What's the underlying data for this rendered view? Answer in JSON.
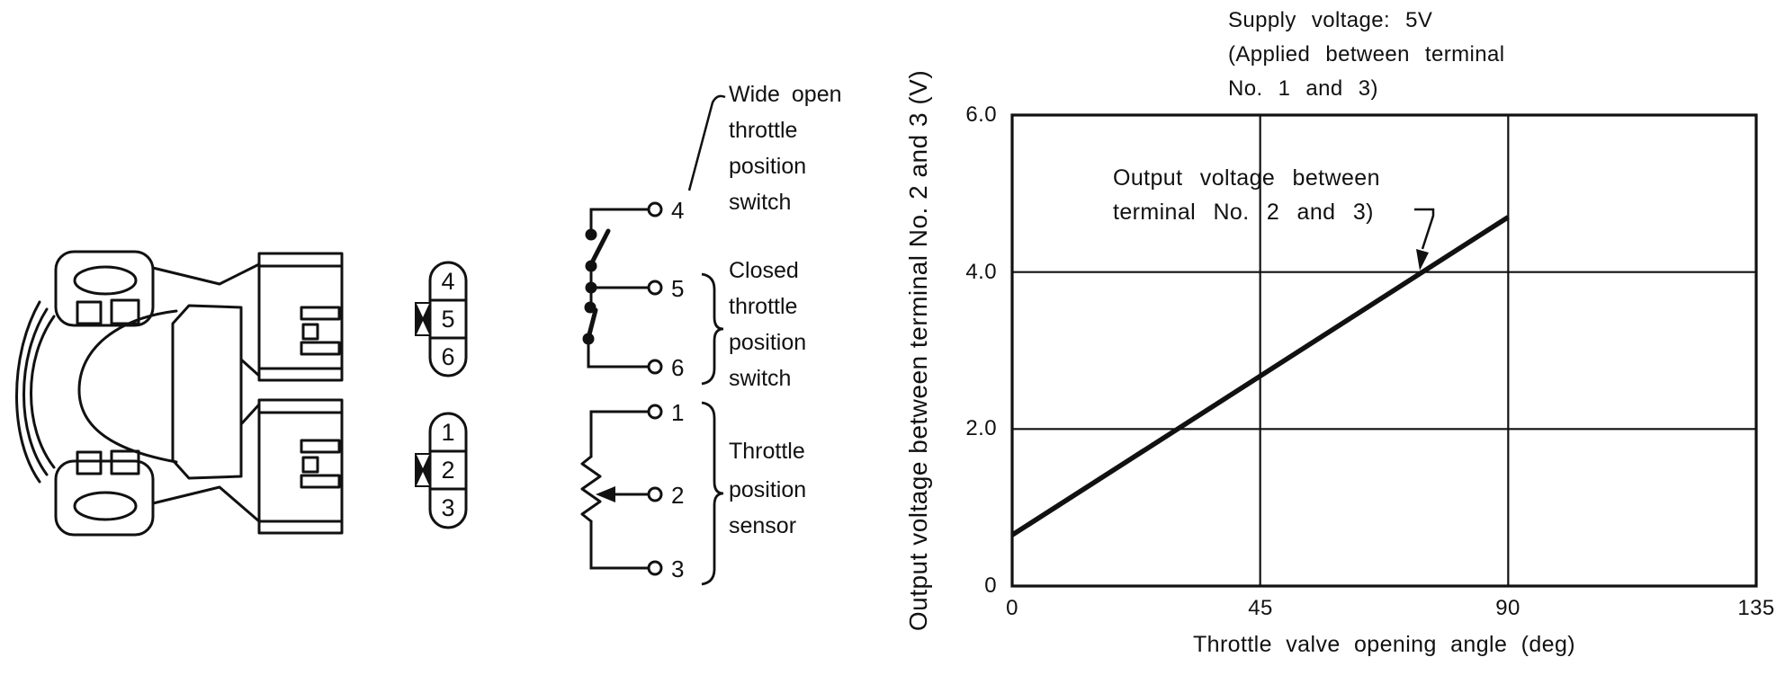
{
  "pin_blocks": {
    "top": [
      "4",
      "5",
      "6"
    ],
    "bottom": [
      "1",
      "2",
      "3"
    ]
  },
  "schematic": {
    "terminal_labels": {
      "t4": "4",
      "t5": "5",
      "t6": "6",
      "t1": "1",
      "t2": "2",
      "t3": "3"
    },
    "labels": {
      "wide_open": [
        "Wide open",
        "throttle",
        "position",
        "switch"
      ],
      "closed": [
        "Closed",
        "throttle",
        "position",
        "switch"
      ],
      "sensor": [
        "Throttle",
        "position",
        "sensor"
      ]
    }
  },
  "chart": {
    "supply_note": [
      "Supply voltage: 5V",
      "(Applied between terminal",
      "No. 1 and 3)"
    ],
    "annotation": [
      "Output voltage between",
      "terminal No. 2 and 3)"
    ],
    "x_title": "Throttle valve opening angle (deg)",
    "y_title": "Output voltage between terminal No. 2 and 3 (V)",
    "x_tick_labels": [
      "0",
      "45",
      "90",
      "135"
    ],
    "y_tick_labels": [
      "6.0",
      "4.0",
      "2.0",
      "0"
    ]
  },
  "chart_data": {
    "type": "line",
    "title": "",
    "xlabel": "Throttle valve opening angle (deg)",
    "ylabel": "Output voltage between terminal No. 2 and 3 (V)",
    "xlim": [
      0,
      135
    ],
    "ylim": [
      0,
      6.0
    ],
    "x_ticks": [
      0,
      45,
      90,
      135
    ],
    "y_ticks": [
      0,
      2.0,
      4.0,
      6.0
    ],
    "grid": true,
    "legend_position": "none",
    "series": [
      {
        "name": "Output voltage between terminal No. 2 and 3",
        "x": [
          0,
          90
        ],
        "y": [
          0.65,
          4.7
        ]
      }
    ],
    "annotations": [
      {
        "text": "Supply voltage: 5V (Applied between terminal No. 1 and 3)",
        "position": "top-right"
      },
      {
        "text": "Output voltage between terminal No. 2 and 3)",
        "arrow_points_to": [
          75,
          4.0
        ]
      }
    ]
  }
}
